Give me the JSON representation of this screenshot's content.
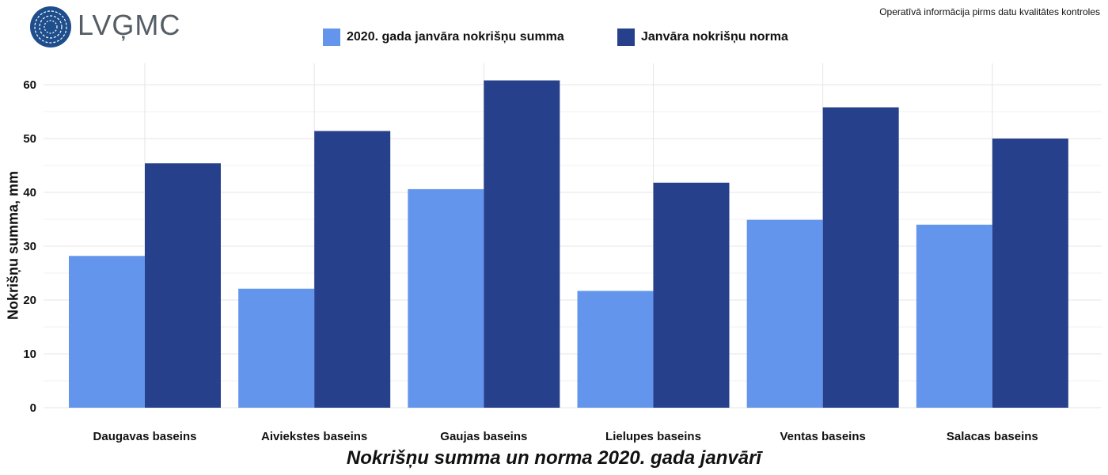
{
  "logo": {
    "text": "LVĢMC"
  },
  "note": "Operatīvā informācija pirms datu kvalitātes kontroles",
  "colors": {
    "series1": "#6495ED",
    "series2": "#27408B",
    "grid": "#e6e6e6"
  },
  "chart_data": {
    "type": "bar",
    "title": "Nokrišņu summa un norma 2020. gada janvārī",
    "xlabel": "",
    "ylabel": "Nokrišņu summa, mm",
    "ylim": [
      0,
      63
    ],
    "yticks": [
      0,
      10,
      20,
      30,
      40,
      50,
      60
    ],
    "grid": true,
    "legend_position": "top",
    "categories": [
      "Daugavas baseins",
      "Aiviekstes baseins",
      "Gaujas baseins",
      "Lielupes baseins",
      "Ventas baseins",
      "Salacas baseins"
    ],
    "series": [
      {
        "name": "2020. gada janvāra nokrišņu summa",
        "values": [
          28.2,
          22.1,
          40.6,
          21.7,
          34.9,
          34.0
        ]
      },
      {
        "name": "Janvāra nokrišņu norma",
        "values": [
          45.4,
          51.4,
          60.8,
          41.8,
          55.8,
          50.0
        ]
      }
    ]
  }
}
